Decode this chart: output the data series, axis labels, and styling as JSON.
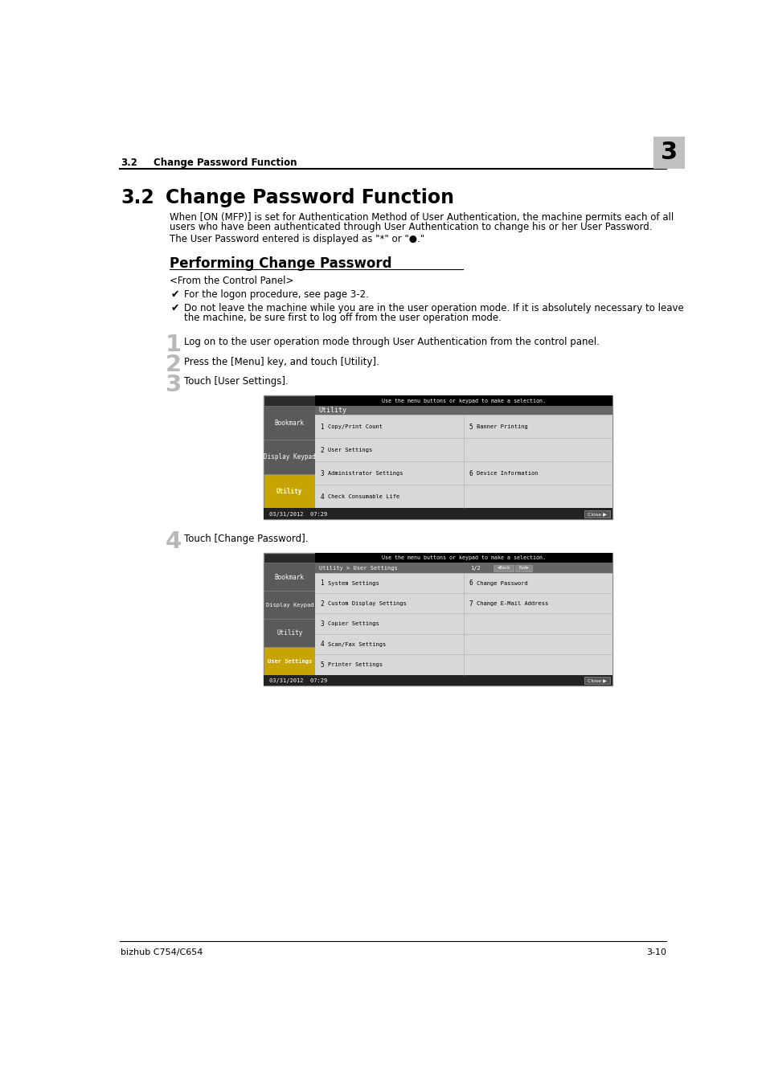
{
  "background_color": "#ffffff",
  "header_section_label": "3.2",
  "header_section_title": "Change Password Function",
  "header_chapter_num": "3",
  "header_chapter_bg": "#c0c0c0",
  "section_number": "3.2",
  "section_title": "Change Password Function",
  "body_text_1a": "When [ON (MFP)] is set for Authentication Method of User Authentication, the machine permits each of all",
  "body_text_1b": "users who have been authenticated through User Authentication to change his or her User Password.",
  "body_text_2": "The User Password entered is displayed as \"*\" or \"●.\"",
  "subsection_title": "Performing Change Password",
  "from_control_panel": "<From the Control Panel>",
  "checkmarks": [
    "For the logon procedure, see page 3-2.",
    "Do not leave the machine while you are in the user operation mode. If it is absolutely necessary to leave|the machine, be sure first to log off from the user operation mode."
  ],
  "steps": [
    "Log on to the user operation mode through User Authentication from the control panel.",
    "Press the [Menu] key, and touch [Utility].",
    "Touch [User Settings].",
    "Touch [Change Password]."
  ],
  "footer_left": "bizhub C754/C654",
  "footer_right": "3-10",
  "screen1_instruction": "Use the menu buttons or keypad to make a selection.",
  "screen1_sidebar_items": [
    "Bookmark",
    "Display Keypad",
    "Utility"
  ],
  "screen1_sidebar_highlight": "Utility",
  "screen1_title_bar": "Utility",
  "screen1_menu_items": [
    {
      "num": "1",
      "label": "Copy/Print Count",
      "col2_num": "5",
      "col2_label": "Banner Printing"
    },
    {
      "num": "2",
      "label": "User Settings",
      "col2_num": "",
      "col2_label": ""
    },
    {
      "num": "3",
      "label": "Administrator Settings",
      "col2_num": "6",
      "col2_label": "Device Information"
    },
    {
      "num": "4",
      "label": "Check Consumable Life",
      "col2_num": "",
      "col2_label": ""
    }
  ],
  "screen1_datetime": "03/31/2012  07:29",
  "screen2_instruction": "Use the menu buttons or keypad to make a selection.",
  "screen2_sidebar_items": [
    "Bookmark",
    "Display Keypad",
    "Utility",
    "User Settings"
  ],
  "screen2_sidebar_highlight": "User Settings",
  "screen2_breadcrumb": "Utility > User Settings",
  "screen2_page": "1/2",
  "screen2_menu_items": [
    {
      "num": "1",
      "label": "System Settings",
      "col2_num": "6",
      "col2_label": "Change Password"
    },
    {
      "num": "2",
      "label": "Custom Display Settings",
      "col2_num": "7",
      "col2_label": "Change E-Mail Address"
    },
    {
      "num": "3",
      "label": "Copier Settings",
      "col2_num": "",
      "col2_label": ""
    },
    {
      "num": "4",
      "label": "Scan/Fax Settings",
      "col2_num": "",
      "col2_label": ""
    },
    {
      "num": "5",
      "label": "Printer Settings",
      "col2_num": "",
      "col2_label": ""
    }
  ],
  "screen2_datetime": "03/31/2012  07:29"
}
